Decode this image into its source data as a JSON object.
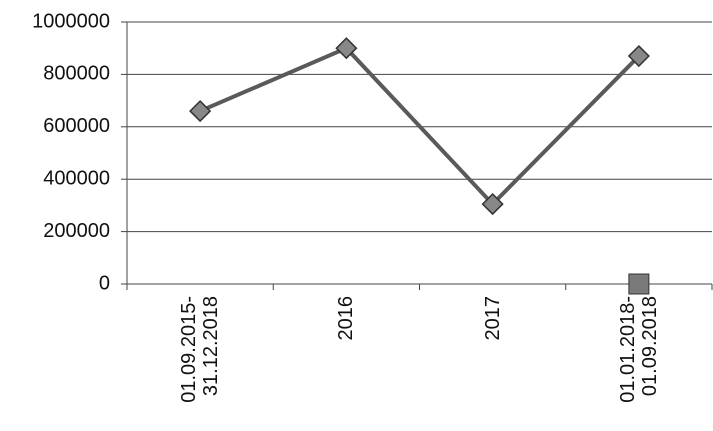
{
  "chart_data": {
    "type": "line",
    "categories": [
      "01.09.2015-\n31.12.2018",
      "2016",
      "2017",
      "01.01.2018-\n01.09.2018"
    ],
    "series": [
      {
        "color": "#5a5a5a",
        "marker": "diamond",
        "values": [
          660000,
          900000,
          305000,
          870000
        ]
      },
      {
        "color": "#7a7a7a",
        "marker": "square",
        "values": [
          null,
          null,
          null,
          0
        ]
      }
    ],
    "ylim": [
      0,
      1000000
    ],
    "yticks": [
      0,
      200000,
      400000,
      600000,
      800000,
      1000000
    ],
    "grid": true
  }
}
